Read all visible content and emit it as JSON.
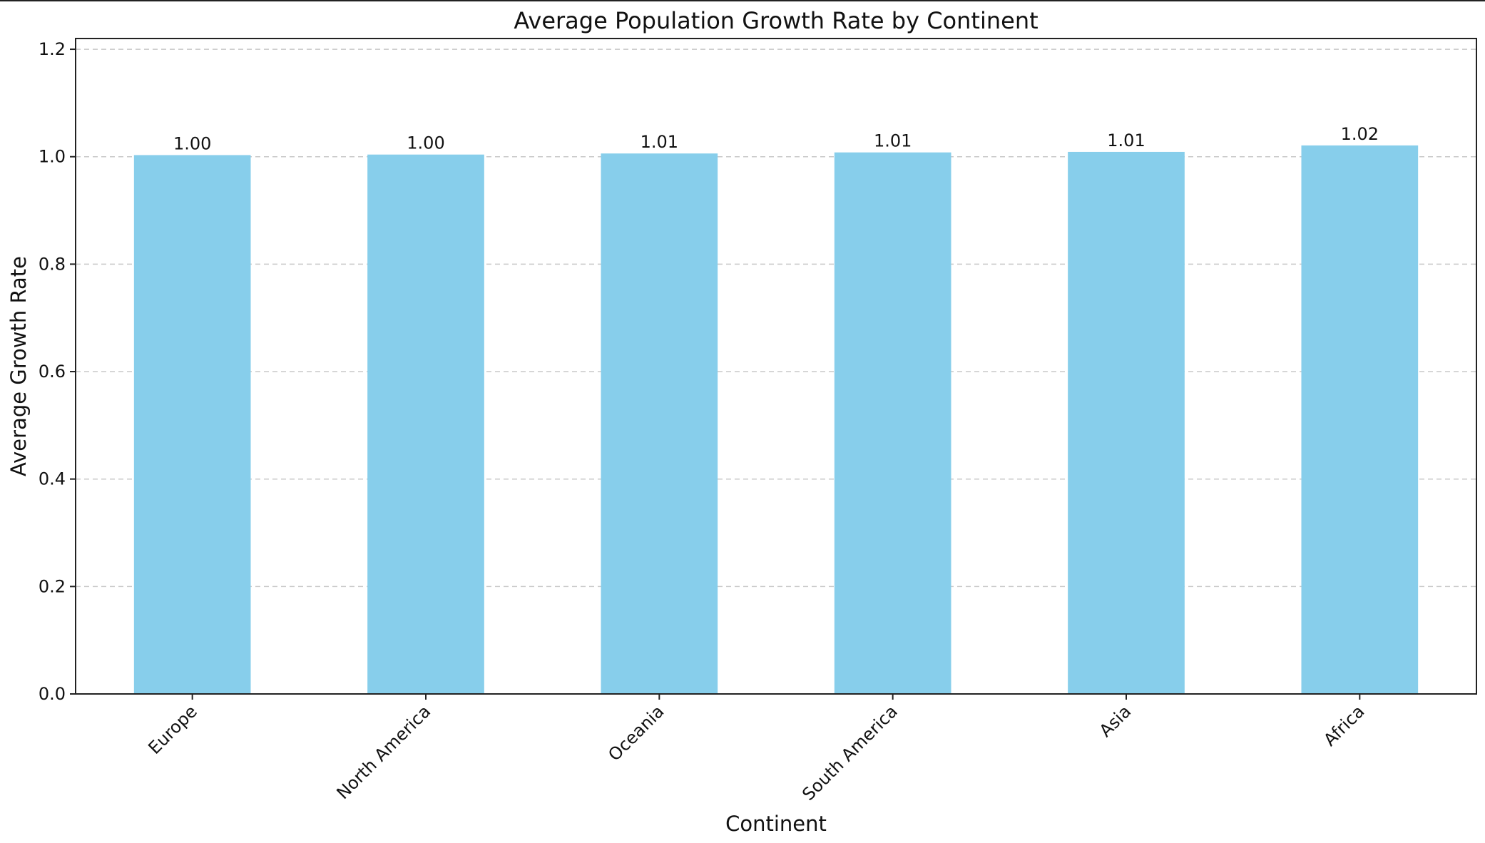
{
  "chart_data": {
    "type": "bar",
    "title": "Average Population Growth Rate by Continent",
    "xlabel": "Continent",
    "ylabel": "Average Growth Rate",
    "categories": [
      "Europe",
      "North America",
      "Oceania",
      "South America",
      "Asia",
      "Africa"
    ],
    "values": [
      1.003,
      1.004,
      1.006,
      1.008,
      1.009,
      1.021
    ],
    "data_labels": [
      "1.00",
      "1.00",
      "1.01",
      "1.01",
      "1.01",
      "1.02"
    ],
    "ylim": [
      0,
      1.22
    ],
    "yticks": [
      0.0,
      0.2,
      0.4,
      0.6,
      0.8,
      1.0,
      1.2
    ],
    "ytick_labels": [
      "0.0",
      "0.2",
      "0.4",
      "0.6",
      "0.8",
      "1.0",
      "1.2"
    ],
    "grid": "y-dashed",
    "bar_color": "#87CEEB",
    "legend": "none"
  }
}
